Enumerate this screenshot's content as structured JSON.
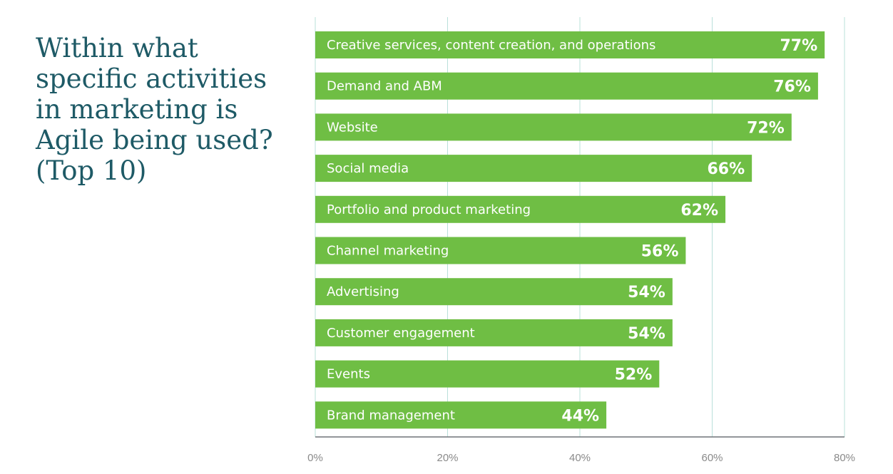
{
  "chart_data": {
    "type": "bar",
    "orientation": "horizontal",
    "title": "Within what\nspecific activities\nin marketing is\nAgile being used?\n(Top 10)",
    "categories": [
      "Creative services, content creation, and operations",
      "Demand and ABM",
      "Website",
      "Social media",
      "Portfolio and product marketing",
      "Channel marketing",
      "Advertising",
      "Customer engagement",
      "Events",
      "Brand management"
    ],
    "values": [
      77,
      76,
      72,
      66,
      62,
      56,
      54,
      54,
      52,
      44
    ],
    "value_labels": [
      "77%",
      "76%",
      "72%",
      "66%",
      "62%",
      "56%",
      "54%",
      "54%",
      "52%",
      "44%"
    ],
    "xlim": [
      0,
      80
    ],
    "xticks": [
      0,
      20,
      40,
      60,
      80
    ],
    "xtick_labels": [
      "0%",
      "20%",
      "40%",
      "60%",
      "80%"
    ],
    "grid": true,
    "colors": {
      "bar": "#6fbe44",
      "grid": "#b9e0da",
      "axis": "#6f7378",
      "title": "#1e5a66"
    }
  }
}
